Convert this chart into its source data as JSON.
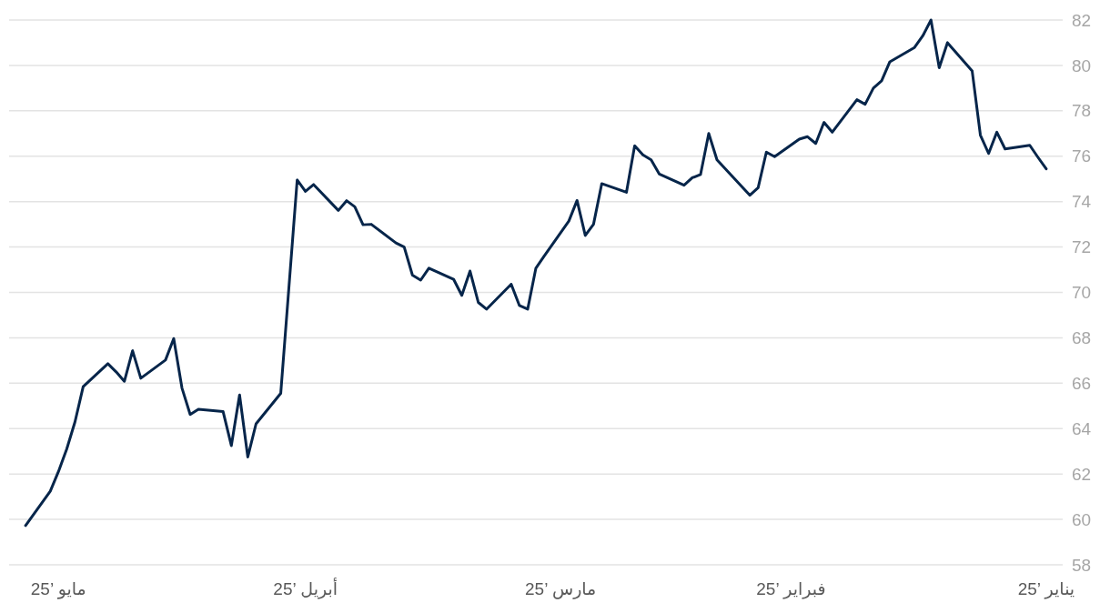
{
  "chart_data": {
    "type": "line",
    "x": [
      "2025-01-01",
      "2025-01-02",
      "2025-01-03",
      "2025-01-06",
      "2025-01-07",
      "2025-01-08",
      "2025-01-09",
      "2025-01-10",
      "2025-01-13",
      "2025-01-14",
      "2025-01-15",
      "2025-01-16",
      "2025-01-17",
      "2025-01-20",
      "2025-01-21",
      "2025-01-22",
      "2025-01-23",
      "2025-01-24",
      "2025-01-27",
      "2025-01-28",
      "2025-01-29",
      "2025-01-30",
      "2025-01-31",
      "2025-02-03",
      "2025-02-04",
      "2025-02-05",
      "2025-02-06",
      "2025-02-10",
      "2025-02-11",
      "2025-02-12",
      "2025-02-13",
      "2025-02-14",
      "2025-02-17",
      "2025-02-18",
      "2025-02-19",
      "2025-02-20",
      "2025-02-21",
      "2025-02-24",
      "2025-02-25",
      "2025-02-26",
      "2025-02-27",
      "2025-02-28",
      "2025-03-03",
      "2025-03-04",
      "2025-03-05",
      "2025-03-06",
      "2025-03-07",
      "2025-03-10",
      "2025-03-11",
      "2025-03-12",
      "2025-03-13",
      "2025-03-14",
      "2025-03-17",
      "2025-03-18",
      "2025-03-19",
      "2025-03-20",
      "2025-03-21",
      "2025-03-24",
      "2025-03-25",
      "2025-03-26",
      "2025-03-27",
      "2025-03-28",
      "2025-03-31",
      "2025-04-01",
      "2025-04-02",
      "2025-04-04",
      "2025-04-07",
      "2025-04-08",
      "2025-04-09",
      "2025-04-10",
      "2025-04-11",
      "2025-04-14",
      "2025-04-15",
      "2025-04-16",
      "2025-04-17",
      "2025-04-18",
      "2025-04-21",
      "2025-04-22",
      "2025-04-23",
      "2025-04-24",
      "2025-04-25",
      "2025-04-28",
      "2025-04-29",
      "2025-04-30",
      "2025-05-01",
      "2025-05-02",
      "2025-05-05"
    ],
    "series": [
      {
        "color": "#06254a",
        "values": [
          75.44,
          75.95,
          76.48,
          76.32,
          77.06,
          76.12,
          76.93,
          79.76,
          81.0,
          79.9,
          82.0,
          81.3,
          80.79,
          80.16,
          79.32,
          79.0,
          78.29,
          78.49,
          77.06,
          77.49,
          76.56,
          76.86,
          76.75,
          75.98,
          76.18,
          74.61,
          74.28,
          75.84,
          77.0,
          75.19,
          75.05,
          74.72,
          75.21,
          75.84,
          76.06,
          76.46,
          74.41,
          74.79,
          73.0,
          72.51,
          74.05,
          73.14,
          71.6,
          71.07,
          69.26,
          69.42,
          70.36,
          69.26,
          69.56,
          70.94,
          69.87,
          70.58,
          71.07,
          70.54,
          70.76,
          72.0,
          72.18,
          73.0,
          72.98,
          73.77,
          74.04,
          73.61,
          74.75,
          74.45,
          74.95,
          65.55,
          64.21,
          62.75,
          65.48,
          63.25,
          64.75,
          64.85,
          64.62,
          65.79,
          67.97,
          67.02,
          66.22,
          67.43,
          66.08,
          66.5,
          66.86,
          65.85,
          64.29,
          63.1,
          62.11,
          61.24,
          59.73
        ]
      }
    ],
    "xlim": [
      "2025-05-07",
      "2024-12-30"
    ],
    "xticks": [
      {
        "value": "2025-05-01",
        "label": "مايو ’25"
      },
      {
        "value": "2025-04-01",
        "label": "أبريل ’25"
      },
      {
        "value": "2025-03-01",
        "label": "مارس ’25"
      },
      {
        "value": "2025-02-01",
        "label": "فبراير ’25"
      },
      {
        "value": "2025-01-01",
        "label": "يناير ’25"
      }
    ],
    "ylim": [
      58,
      82
    ],
    "yticks": [
      58,
      60,
      62,
      64,
      66,
      68,
      70,
      72,
      74,
      76,
      78,
      80,
      82
    ],
    "grid": "y",
    "marker": "none",
    "line_style": "solid"
  }
}
